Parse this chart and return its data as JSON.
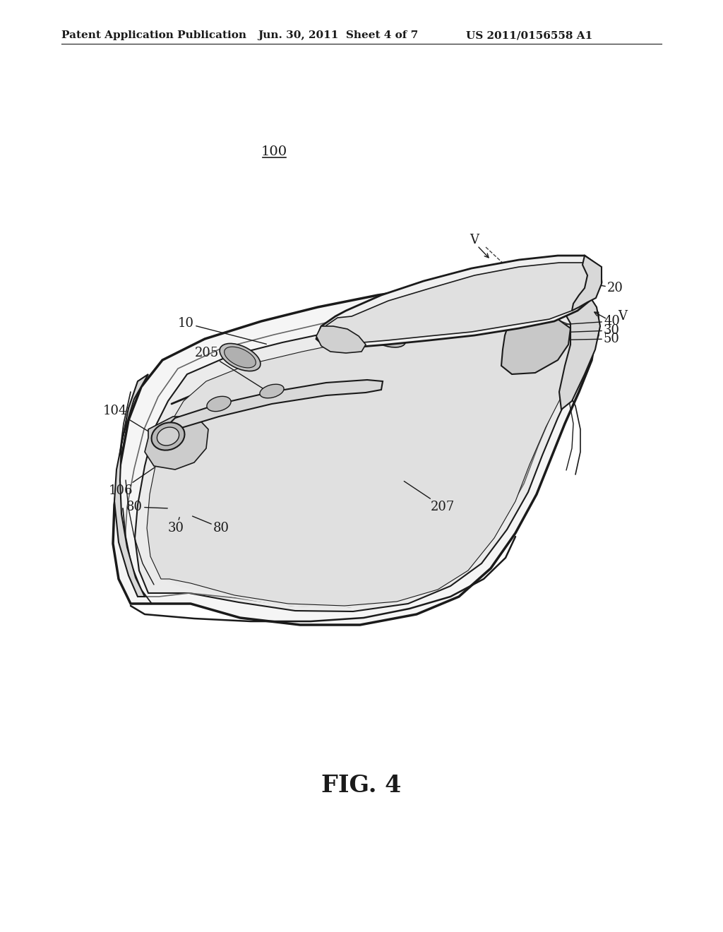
{
  "bg_color": "#ffffff",
  "line_color": "#1a1a1a",
  "header_left": "Patent Application Publication",
  "header_center": "Jun. 30, 2011  Sheet 4 of 7",
  "header_right": "US 2011/0156558 A1",
  "fig_label": "FIG. 4",
  "ref_100": "100",
  "ref_10": "10",
  "ref_20": "20",
  "ref_30": "30",
  "ref_40": "40",
  "ref_50": "50",
  "ref_80a": "80",
  "ref_80b": "80",
  "ref_104": "104",
  "ref_106": "106",
  "ref_205": "205",
  "ref_207": "207",
  "ref_V1": "V",
  "ref_V2": "V",
  "header_fontsize": 11,
  "fig_fontsize": 24,
  "ref_fontsize": 13
}
